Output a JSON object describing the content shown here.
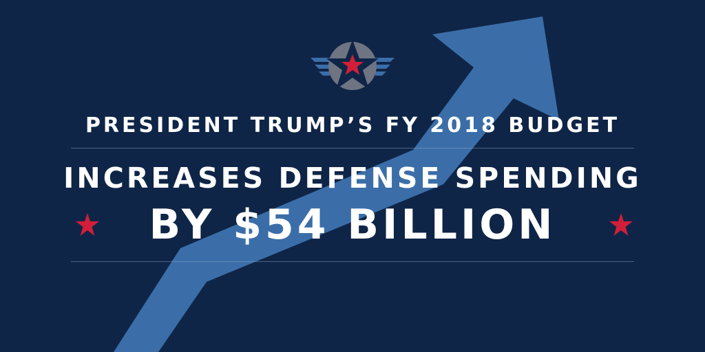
{
  "headline": {
    "line1": "PRESIDENT TRUMP’S FY 2018 BUDGET",
    "line2": "INCREASES DEFENSE SPENDING",
    "line3": "BY $54 BILLION"
  },
  "colors": {
    "background": "#0f2547",
    "arrow": "#3b6ea8",
    "star": "#d11f3a",
    "text": "#ffffff",
    "emblem_circle": "#6e7482",
    "emblem_wings": "#3b6ea8"
  },
  "icons": {
    "emblem": "winged-star-emblem-icon",
    "arrow": "upward-trend-arrow-icon",
    "side_star": "red-star-icon"
  }
}
